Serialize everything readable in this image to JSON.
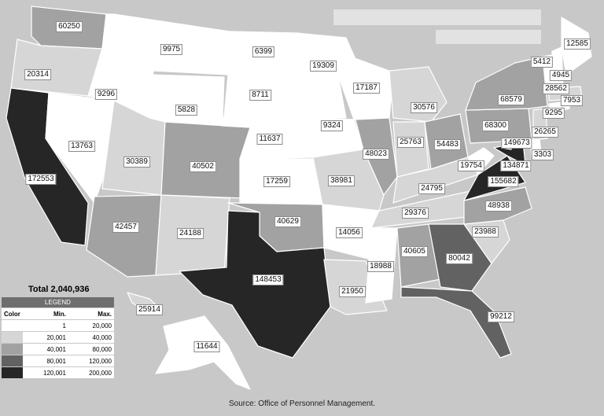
{
  "map": {
    "total_label": "Total 2,040,936",
    "source": "Source:   Office of Personnel Management.",
    "legend": {
      "title": "LEGEND",
      "headers": [
        "Color",
        "Min.",
        "Max."
      ],
      "rows": [
        {
          "color": "#ffffff",
          "min": "1",
          "max": "20,000"
        },
        {
          "color": "#d6d6d6",
          "min": "20,001",
          "max": "40,000"
        },
        {
          "color": "#a2a2a2",
          "min": "40,001",
          "max": "80,000"
        },
        {
          "color": "#626262",
          "min": "80,001",
          "max": "120,000"
        },
        {
          "color": "#262626",
          "min": "120,001",
          "max": "200,000"
        }
      ]
    },
    "states": [
      {
        "id": "WA",
        "value": "60250",
        "color": "#a2a2a2"
      },
      {
        "id": "OR",
        "value": "20314",
        "color": "#d6d6d6"
      },
      {
        "id": "CA",
        "value": "172553",
        "color": "#262626"
      },
      {
        "id": "NV",
        "value": "13763",
        "color": "#ffffff"
      },
      {
        "id": "ID",
        "value": "9296",
        "color": "#ffffff"
      },
      {
        "id": "MT",
        "value": "9975",
        "color": "#ffffff"
      },
      {
        "id": "WY",
        "value": "5828",
        "color": "#ffffff"
      },
      {
        "id": "UT",
        "value": "30389",
        "color": "#d6d6d6"
      },
      {
        "id": "CO",
        "value": "40502",
        "color": "#a2a2a2"
      },
      {
        "id": "AZ",
        "value": "42457",
        "color": "#a2a2a2"
      },
      {
        "id": "NM",
        "value": "24188",
        "color": "#d6d6d6"
      },
      {
        "id": "ND",
        "value": "6399",
        "color": "#ffffff"
      },
      {
        "id": "SD",
        "value": "8711",
        "color": "#ffffff"
      },
      {
        "id": "NE",
        "value": "11637",
        "color": "#ffffff"
      },
      {
        "id": "KS",
        "value": "17259",
        "color": "#ffffff"
      },
      {
        "id": "OK",
        "value": "40629",
        "color": "#a2a2a2"
      },
      {
        "id": "TX",
        "value": "148453",
        "color": "#262626"
      },
      {
        "id": "MN",
        "value": "19309",
        "color": "#ffffff"
      },
      {
        "id": "IA",
        "value": "9324",
        "color": "#ffffff"
      },
      {
        "id": "MO",
        "value": "38981",
        "color": "#d6d6d6"
      },
      {
        "id": "AR",
        "value": "14056",
        "color": "#ffffff"
      },
      {
        "id": "LA",
        "value": "21950",
        "color": "#d6d6d6"
      },
      {
        "id": "WI",
        "value": "17187",
        "color": "#ffffff"
      },
      {
        "id": "IL",
        "value": "48023",
        "color": "#a2a2a2"
      },
      {
        "id": "MI",
        "value": "30576",
        "color": "#d6d6d6"
      },
      {
        "id": "IN",
        "value": "25763",
        "color": "#d6d6d6"
      },
      {
        "id": "OH",
        "value": "54483",
        "color": "#a2a2a2"
      },
      {
        "id": "KY",
        "value": "24795",
        "color": "#d6d6d6"
      },
      {
        "id": "TN",
        "value": "29376",
        "color": "#d6d6d6"
      },
      {
        "id": "MS",
        "value": "18988",
        "color": "#ffffff"
      },
      {
        "id": "AL",
        "value": "40605",
        "color": "#a2a2a2"
      },
      {
        "id": "GA",
        "value": "80042",
        "color": "#626262"
      },
      {
        "id": "FL",
        "value": "99212",
        "color": "#626262"
      },
      {
        "id": "SC",
        "value": "23988",
        "color": "#d6d6d6"
      },
      {
        "id": "NC",
        "value": "48938",
        "color": "#a2a2a2"
      },
      {
        "id": "VA",
        "value": "155682",
        "color": "#262626"
      },
      {
        "id": "WV",
        "value": "19754",
        "color": "#ffffff"
      },
      {
        "id": "PA",
        "value": "68300",
        "color": "#a2a2a2"
      },
      {
        "id": "NY",
        "value": "68579",
        "color": "#a2a2a2"
      },
      {
        "id": "MD",
        "value": "134871",
        "color": "#262626"
      },
      {
        "id": "DC",
        "value": "149673",
        "color": "#262626"
      },
      {
        "id": "DE",
        "value": "3303",
        "color": "#ffffff"
      },
      {
        "id": "NJ",
        "value": "26265",
        "color": "#d6d6d6"
      },
      {
        "id": "CT",
        "value": "9295",
        "color": "#ffffff"
      },
      {
        "id": "RI",
        "value": "7953",
        "color": "#ffffff"
      },
      {
        "id": "MA",
        "value": "28562",
        "color": "#d6d6d6"
      },
      {
        "id": "VT",
        "value": "5412",
        "color": "#ffffff"
      },
      {
        "id": "NH",
        "value": "4945",
        "color": "#ffffff"
      },
      {
        "id": "ME",
        "value": "12585",
        "color": "#ffffff"
      },
      {
        "id": "AK",
        "value": "11644",
        "color": "#ffffff"
      },
      {
        "id": "HI",
        "value": "25914",
        "color": "#d6d6d6"
      }
    ]
  }
}
